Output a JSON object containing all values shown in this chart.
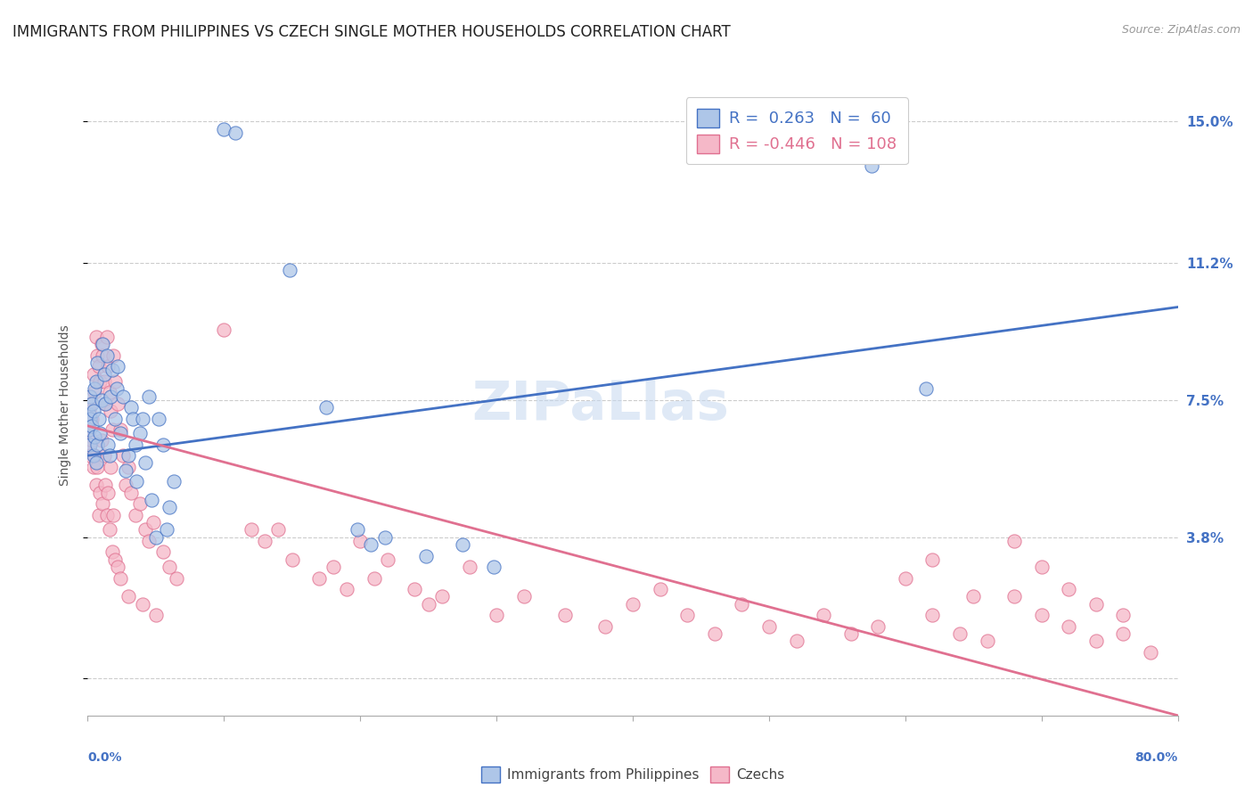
{
  "title": "IMMIGRANTS FROM PHILIPPINES VS CZECH SINGLE MOTHER HOUSEHOLDS CORRELATION CHART",
  "source": "Source: ZipAtlas.com",
  "ylabel": "Single Mother Households",
  "yticks": [
    0.0,
    0.038,
    0.075,
    0.112,
    0.15
  ],
  "ytick_labels": [
    "",
    "3.8%",
    "7.5%",
    "11.2%",
    "15.0%"
  ],
  "xlim": [
    0.0,
    0.8
  ],
  "ylim": [
    -0.01,
    0.157
  ],
  "color_blue": "#aec6e8",
  "color_pink": "#f5b8c8",
  "line_color_blue": "#4472c4",
  "line_color_pink": "#e07090",
  "scatter_blue": [
    [
      0.001,
      0.067
    ],
    [
      0.001,
      0.071
    ],
    [
      0.002,
      0.063
    ],
    [
      0.002,
      0.07
    ],
    [
      0.002,
      0.076
    ],
    [
      0.003,
      0.068
    ],
    [
      0.003,
      0.074
    ],
    [
      0.004,
      0.06
    ],
    [
      0.004,
      0.072
    ],
    [
      0.005,
      0.078
    ],
    [
      0.005,
      0.065
    ],
    [
      0.006,
      0.08
    ],
    [
      0.006,
      0.058
    ],
    [
      0.007,
      0.085
    ],
    [
      0.007,
      0.063
    ],
    [
      0.008,
      0.07
    ],
    [
      0.009,
      0.066
    ],
    [
      0.01,
      0.075
    ],
    [
      0.011,
      0.09
    ],
    [
      0.012,
      0.082
    ],
    [
      0.013,
      0.074
    ],
    [
      0.014,
      0.087
    ],
    [
      0.015,
      0.063
    ],
    [
      0.016,
      0.06
    ],
    [
      0.017,
      0.076
    ],
    [
      0.018,
      0.083
    ],
    [
      0.02,
      0.07
    ],
    [
      0.021,
      0.078
    ],
    [
      0.022,
      0.084
    ],
    [
      0.024,
      0.066
    ],
    [
      0.026,
      0.076
    ],
    [
      0.028,
      0.056
    ],
    [
      0.03,
      0.06
    ],
    [
      0.032,
      0.073
    ],
    [
      0.033,
      0.07
    ],
    [
      0.035,
      0.063
    ],
    [
      0.036,
      0.053
    ],
    [
      0.038,
      0.066
    ],
    [
      0.04,
      0.07
    ],
    [
      0.042,
      0.058
    ],
    [
      0.045,
      0.076
    ],
    [
      0.047,
      0.048
    ],
    [
      0.05,
      0.038
    ],
    [
      0.052,
      0.07
    ],
    [
      0.055,
      0.063
    ],
    [
      0.058,
      0.04
    ],
    [
      0.06,
      0.046
    ],
    [
      0.063,
      0.053
    ],
    [
      0.1,
      0.148
    ],
    [
      0.108,
      0.147
    ],
    [
      0.148,
      0.11
    ],
    [
      0.175,
      0.073
    ],
    [
      0.198,
      0.04
    ],
    [
      0.208,
      0.036
    ],
    [
      0.218,
      0.038
    ],
    [
      0.248,
      0.033
    ],
    [
      0.275,
      0.036
    ],
    [
      0.298,
      0.03
    ],
    [
      0.575,
      0.138
    ],
    [
      0.615,
      0.078
    ]
  ],
  "scatter_pink": [
    [
      0.001,
      0.072
    ],
    [
      0.001,
      0.067
    ],
    [
      0.001,
      0.062
    ],
    [
      0.002,
      0.074
    ],
    [
      0.002,
      0.06
    ],
    [
      0.003,
      0.07
    ],
    [
      0.003,
      0.064
    ],
    [
      0.004,
      0.082
    ],
    [
      0.004,
      0.057
    ],
    [
      0.005,
      0.077
    ],
    [
      0.005,
      0.06
    ],
    [
      0.006,
      0.092
    ],
    [
      0.006,
      0.052
    ],
    [
      0.007,
      0.087
    ],
    [
      0.007,
      0.057
    ],
    [
      0.008,
      0.084
    ],
    [
      0.008,
      0.044
    ],
    [
      0.009,
      0.08
    ],
    [
      0.009,
      0.05
    ],
    [
      0.01,
      0.09
    ],
    [
      0.01,
      0.064
    ],
    [
      0.011,
      0.087
    ],
    [
      0.011,
      0.047
    ],
    [
      0.012,
      0.08
    ],
    [
      0.012,
      0.06
    ],
    [
      0.013,
      0.074
    ],
    [
      0.013,
      0.052
    ],
    [
      0.014,
      0.092
    ],
    [
      0.014,
      0.044
    ],
    [
      0.015,
      0.084
    ],
    [
      0.015,
      0.05
    ],
    [
      0.016,
      0.077
    ],
    [
      0.016,
      0.04
    ],
    [
      0.017,
      0.072
    ],
    [
      0.017,
      0.057
    ],
    [
      0.018,
      0.067
    ],
    [
      0.018,
      0.034
    ],
    [
      0.019,
      0.087
    ],
    [
      0.019,
      0.044
    ],
    [
      0.02,
      0.08
    ],
    [
      0.02,
      0.032
    ],
    [
      0.022,
      0.074
    ],
    [
      0.022,
      0.03
    ],
    [
      0.024,
      0.067
    ],
    [
      0.024,
      0.027
    ],
    [
      0.026,
      0.06
    ],
    [
      0.028,
      0.052
    ],
    [
      0.03,
      0.057
    ],
    [
      0.03,
      0.022
    ],
    [
      0.032,
      0.05
    ],
    [
      0.035,
      0.044
    ],
    [
      0.038,
      0.047
    ],
    [
      0.04,
      0.02
    ],
    [
      0.042,
      0.04
    ],
    [
      0.045,
      0.037
    ],
    [
      0.048,
      0.042
    ],
    [
      0.05,
      0.017
    ],
    [
      0.055,
      0.034
    ],
    [
      0.06,
      0.03
    ],
    [
      0.065,
      0.027
    ],
    [
      0.1,
      0.094
    ],
    [
      0.12,
      0.04
    ],
    [
      0.13,
      0.037
    ],
    [
      0.14,
      0.04
    ],
    [
      0.15,
      0.032
    ],
    [
      0.17,
      0.027
    ],
    [
      0.18,
      0.03
    ],
    [
      0.19,
      0.024
    ],
    [
      0.2,
      0.037
    ],
    [
      0.21,
      0.027
    ],
    [
      0.22,
      0.032
    ],
    [
      0.24,
      0.024
    ],
    [
      0.25,
      0.02
    ],
    [
      0.26,
      0.022
    ],
    [
      0.28,
      0.03
    ],
    [
      0.3,
      0.017
    ],
    [
      0.32,
      0.022
    ],
    [
      0.35,
      0.017
    ],
    [
      0.38,
      0.014
    ],
    [
      0.4,
      0.02
    ],
    [
      0.42,
      0.024
    ],
    [
      0.44,
      0.017
    ],
    [
      0.46,
      0.012
    ],
    [
      0.48,
      0.02
    ],
    [
      0.5,
      0.014
    ],
    [
      0.52,
      0.01
    ],
    [
      0.54,
      0.017
    ],
    [
      0.56,
      0.012
    ],
    [
      0.58,
      0.014
    ],
    [
      0.6,
      0.027
    ],
    [
      0.62,
      0.017
    ],
    [
      0.64,
      0.012
    ],
    [
      0.66,
      0.01
    ],
    [
      0.68,
      0.022
    ],
    [
      0.7,
      0.017
    ],
    [
      0.72,
      0.014
    ],
    [
      0.74,
      0.01
    ],
    [
      0.76,
      0.012
    ],
    [
      0.7,
      0.03
    ],
    [
      0.72,
      0.024
    ],
    [
      0.74,
      0.02
    ],
    [
      0.76,
      0.017
    ],
    [
      0.78,
      0.007
    ],
    [
      0.68,
      0.037
    ],
    [
      0.65,
      0.022
    ],
    [
      0.62,
      0.032
    ]
  ],
  "blue_line_x": [
    0.0,
    0.8
  ],
  "blue_line_y": [
    0.06,
    0.1
  ],
  "pink_line_x": [
    0.0,
    0.8
  ],
  "pink_line_y": [
    0.068,
    -0.01
  ],
  "background_color": "#ffffff",
  "grid_color": "#cccccc",
  "title_color": "#222222",
  "title_fontsize": 12,
  "source_fontsize": 9,
  "axis_label_color": "#4472c4"
}
